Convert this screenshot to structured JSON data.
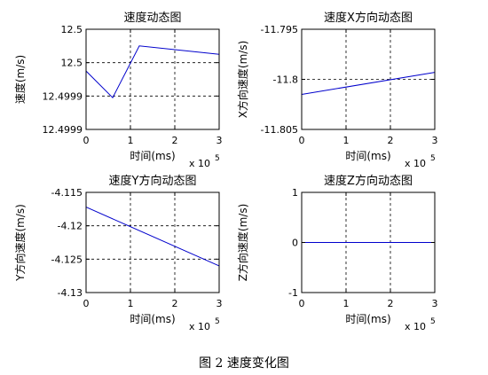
{
  "caption": "图 2  速度变化图",
  "chart_data": [
    {
      "type": "line",
      "title": "速度动态图",
      "xlabel": "时间(ms)",
      "ylabel": "速度(m/s)",
      "x_multiplier": "x 10",
      "x_exponent": "5",
      "xlim": [
        0,
        300000
      ],
      "ylim": [
        0,
        3
      ],
      "xticks": [
        {
          "value": 0,
          "label": "0"
        },
        {
          "value": 100000,
          "label": "1"
        },
        {
          "value": 200000,
          "label": "2"
        },
        {
          "value": 300000,
          "label": "3"
        }
      ],
      "yticks": [
        {
          "value": 3,
          "label": "12.5"
        },
        {
          "value": 2,
          "label": "12.5"
        },
        {
          "value": 1,
          "label": "12.4999"
        },
        {
          "value": 0,
          "label": "12.4999"
        }
      ],
      "grid": true,
      "series": [
        {
          "color": "#0000cc",
          "x": [
            0,
            60000,
            120000,
            300000
          ],
          "y": [
            1.75,
            0.95,
            2.5,
            2.25
          ]
        }
      ]
    },
    {
      "type": "line",
      "title": "速度X方向动态图",
      "xlabel": "时间(ms)",
      "ylabel": "X方向速度(m/s)",
      "x_multiplier": "x 10",
      "x_exponent": "5",
      "xlim": [
        0,
        300000
      ],
      "ylim": [
        -11.805,
        -11.795
      ],
      "xticks": [
        {
          "value": 0,
          "label": "0"
        },
        {
          "value": 100000,
          "label": "1"
        },
        {
          "value": 200000,
          "label": "2"
        },
        {
          "value": 300000,
          "label": "3"
        }
      ],
      "yticks": [
        {
          "value": -11.795,
          "label": "-11.795"
        },
        {
          "value": -11.8,
          "label": "-11.8"
        },
        {
          "value": -11.805,
          "label": "-11.805"
        }
      ],
      "grid": true,
      "series": [
        {
          "color": "#0000cc",
          "x": [
            0,
            300000
          ],
          "y": [
            -11.8015,
            -11.7993
          ]
        }
      ]
    },
    {
      "type": "line",
      "title": "速度Y方向动态图",
      "xlabel": "时间(ms)",
      "ylabel": "Y方向速度(m/s)",
      "x_multiplier": "x 10",
      "x_exponent": "5",
      "xlim": [
        0,
        300000
      ],
      "ylim": [
        -4.13,
        -4.115
      ],
      "xticks": [
        {
          "value": 0,
          "label": "0"
        },
        {
          "value": 100000,
          "label": "1"
        },
        {
          "value": 200000,
          "label": "2"
        },
        {
          "value": 300000,
          "label": "3"
        }
      ],
      "yticks": [
        {
          "value": -4.115,
          "label": "-4.115"
        },
        {
          "value": -4.12,
          "label": "-4.12"
        },
        {
          "value": -4.125,
          "label": "-4.125"
        },
        {
          "value": -4.13,
          "label": "-4.13"
        }
      ],
      "grid": true,
      "series": [
        {
          "color": "#0000cc",
          "x": [
            0,
            300000
          ],
          "y": [
            -4.1172,
            -4.126
          ]
        }
      ]
    },
    {
      "type": "line",
      "title": "速度Z方向动态图",
      "xlabel": "时间(ms)",
      "ylabel": "Z方向速度(m/s)",
      "x_multiplier": "x 10",
      "x_exponent": "5",
      "xlim": [
        0,
        300000
      ],
      "ylim": [
        -1,
        1
      ],
      "xticks": [
        {
          "value": 0,
          "label": "0"
        },
        {
          "value": 100000,
          "label": "1"
        },
        {
          "value": 200000,
          "label": "2"
        },
        {
          "value": 300000,
          "label": "3"
        }
      ],
      "yticks": [
        {
          "value": 1,
          "label": "1"
        },
        {
          "value": 0,
          "label": "0"
        },
        {
          "value": -1,
          "label": "-1"
        }
      ],
      "grid": true,
      "series": [
        {
          "color": "#0000cc",
          "x": [
            0,
            300000
          ],
          "y": [
            0,
            0
          ]
        }
      ]
    }
  ]
}
